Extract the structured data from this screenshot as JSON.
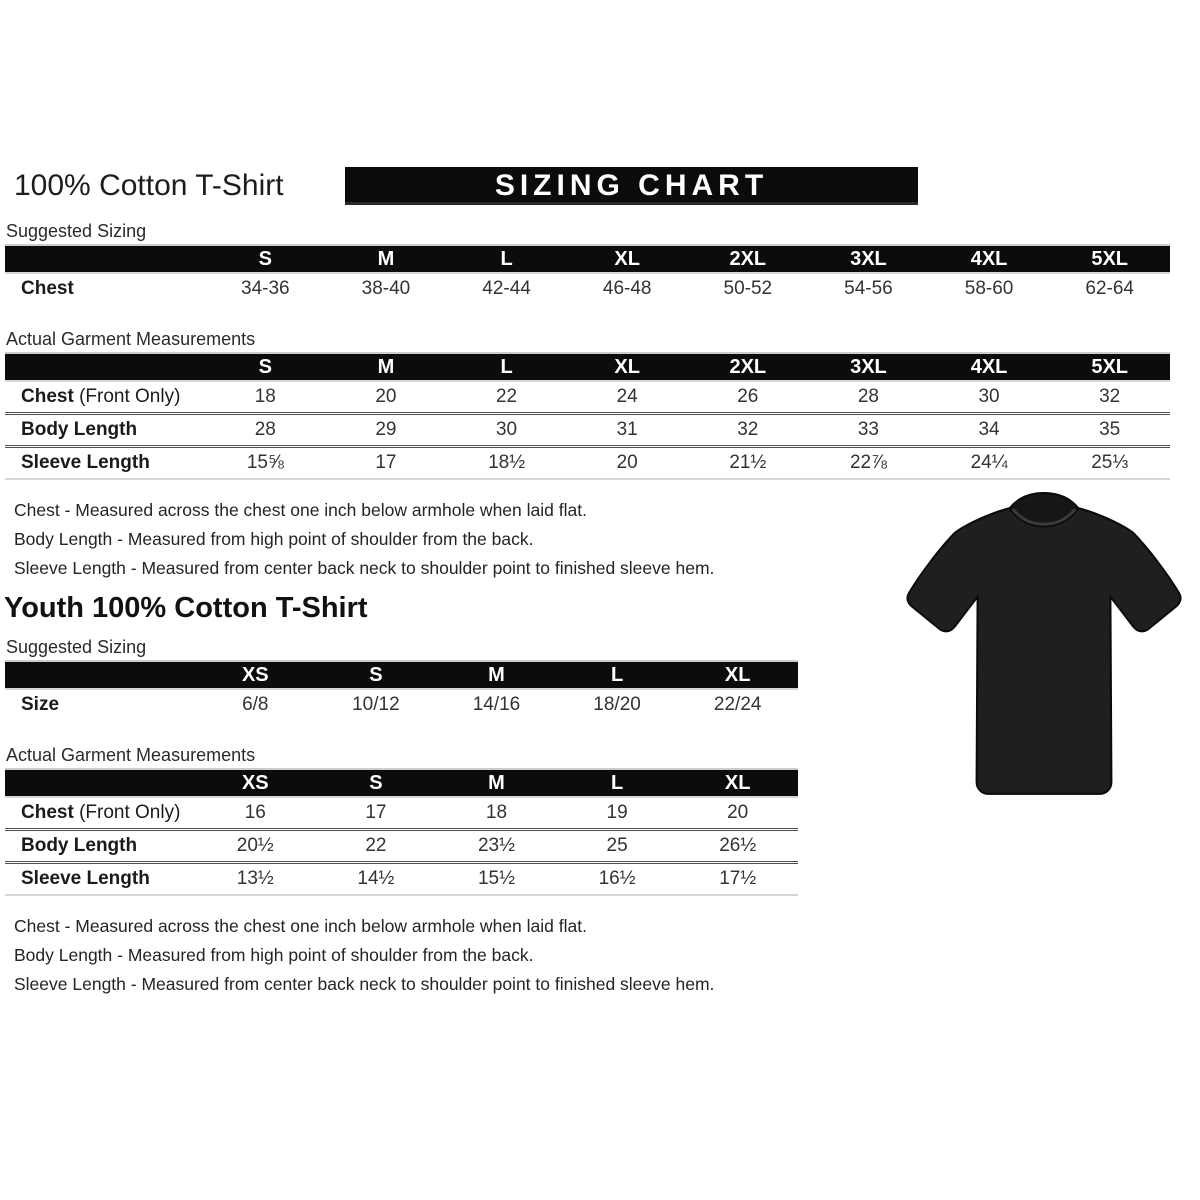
{
  "adult": {
    "title": "100% Cotton T-Shirt",
    "banner": "SIZING CHART",
    "suggested_label": "Suggested Sizing",
    "actual_label": "Actual Garment Measurements",
    "suggested": {
      "columns": [
        "S",
        "M",
        "L",
        "XL",
        "2XL",
        "3XL",
        "4XL",
        "5XL"
      ],
      "rows": [
        {
          "label": "Chest",
          "suffix": "",
          "values": [
            "34-36",
            "38-40",
            "42-44",
            "46-48",
            "50-52",
            "54-56",
            "58-60",
            "62-64"
          ]
        }
      ]
    },
    "actual": {
      "columns": [
        "S",
        "M",
        "L",
        "XL",
        "2XL",
        "3XL",
        "4XL",
        "5XL"
      ],
      "rows": [
        {
          "label": "Chest",
          "suffix": " (Front Only)",
          "values": [
            "18",
            "20",
            "22",
            "24",
            "26",
            "28",
            "30",
            "32"
          ]
        },
        {
          "label": "Body Length",
          "suffix": "",
          "values": [
            "28",
            "29",
            "30",
            "31",
            "32",
            "33",
            "34",
            "35"
          ]
        },
        {
          "label": "Sleeve Length",
          "suffix": "",
          "values": [
            "15⅝",
            "17",
            "18½",
            "20",
            "21½",
            "22⅞",
            "24¼",
            "25⅓"
          ]
        }
      ]
    },
    "notes": [
      "Chest - Measured across the chest one inch below armhole when laid flat.",
      "Body Length - Measured from high point of shoulder from the back.",
      "Sleeve Length - Measured from center back neck to shoulder point to finished sleeve hem."
    ]
  },
  "youth": {
    "title": "Youth 100% Cotton T-Shirt",
    "suggested_label": "Suggested Sizing",
    "actual_label": "Actual Garment Measurements",
    "suggested": {
      "columns": [
        "XS",
        "S",
        "M",
        "L",
        "XL"
      ],
      "rows": [
        {
          "label": "Size",
          "suffix": "",
          "values": [
            "6/8",
            "10/12",
            "14/16",
            "18/20",
            "22/24"
          ]
        }
      ]
    },
    "actual": {
      "columns": [
        "XS",
        "S",
        "M",
        "L",
        "XL"
      ],
      "rows": [
        {
          "label": "Chest",
          "suffix": " (Front Only)",
          "values": [
            "16",
            "17",
            "18",
            "19",
            "20"
          ]
        },
        {
          "label": "Body Length",
          "suffix": "",
          "values": [
            "20½",
            "22",
            "23½",
            "25",
            "26½"
          ]
        },
        {
          "label": "Sleeve Length",
          "suffix": "",
          "values": [
            "13½",
            "14½",
            "15½",
            "16½",
            "17½"
          ]
        }
      ]
    },
    "notes": [
      "Chest - Measured across the chest one inch below armhole when laid flat.",
      "Body Length - Measured from high point of shoulder from the back.",
      "Sleeve Length - Measured from center back neck to shoulder point to finished sleeve hem."
    ]
  },
  "image": {
    "tshirt_color": "#1f1f1f",
    "tshirt_shade": "#0e0e0e"
  }
}
